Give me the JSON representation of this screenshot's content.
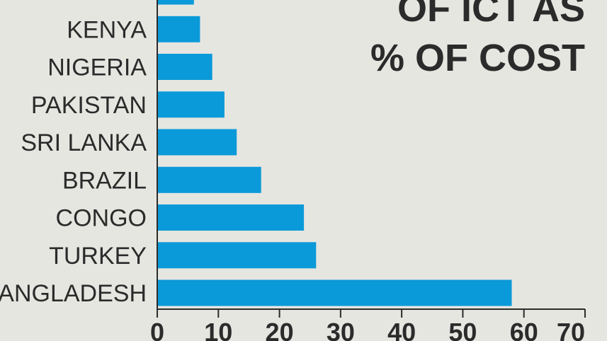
{
  "chart_data": {
    "type": "bar",
    "orientation": "horizontal",
    "title_lines": [
      "OF ICT AS",
      "% OF COST"
    ],
    "categories": [
      "",
      "KENYA",
      "NIGERIA",
      "PAKISTAN",
      "SRI LANKA",
      "BRAZIL",
      "CONGO",
      "TURKEY",
      "BANGLADESH"
    ],
    "values": [
      6,
      7,
      9,
      11,
      13,
      17,
      24,
      26,
      58
    ],
    "xlim": [
      0,
      70
    ],
    "ticks": [
      0,
      10,
      20,
      30,
      40,
      50,
      60,
      70
    ],
    "bar_color": "#0b9ad9",
    "grid": false
  }
}
